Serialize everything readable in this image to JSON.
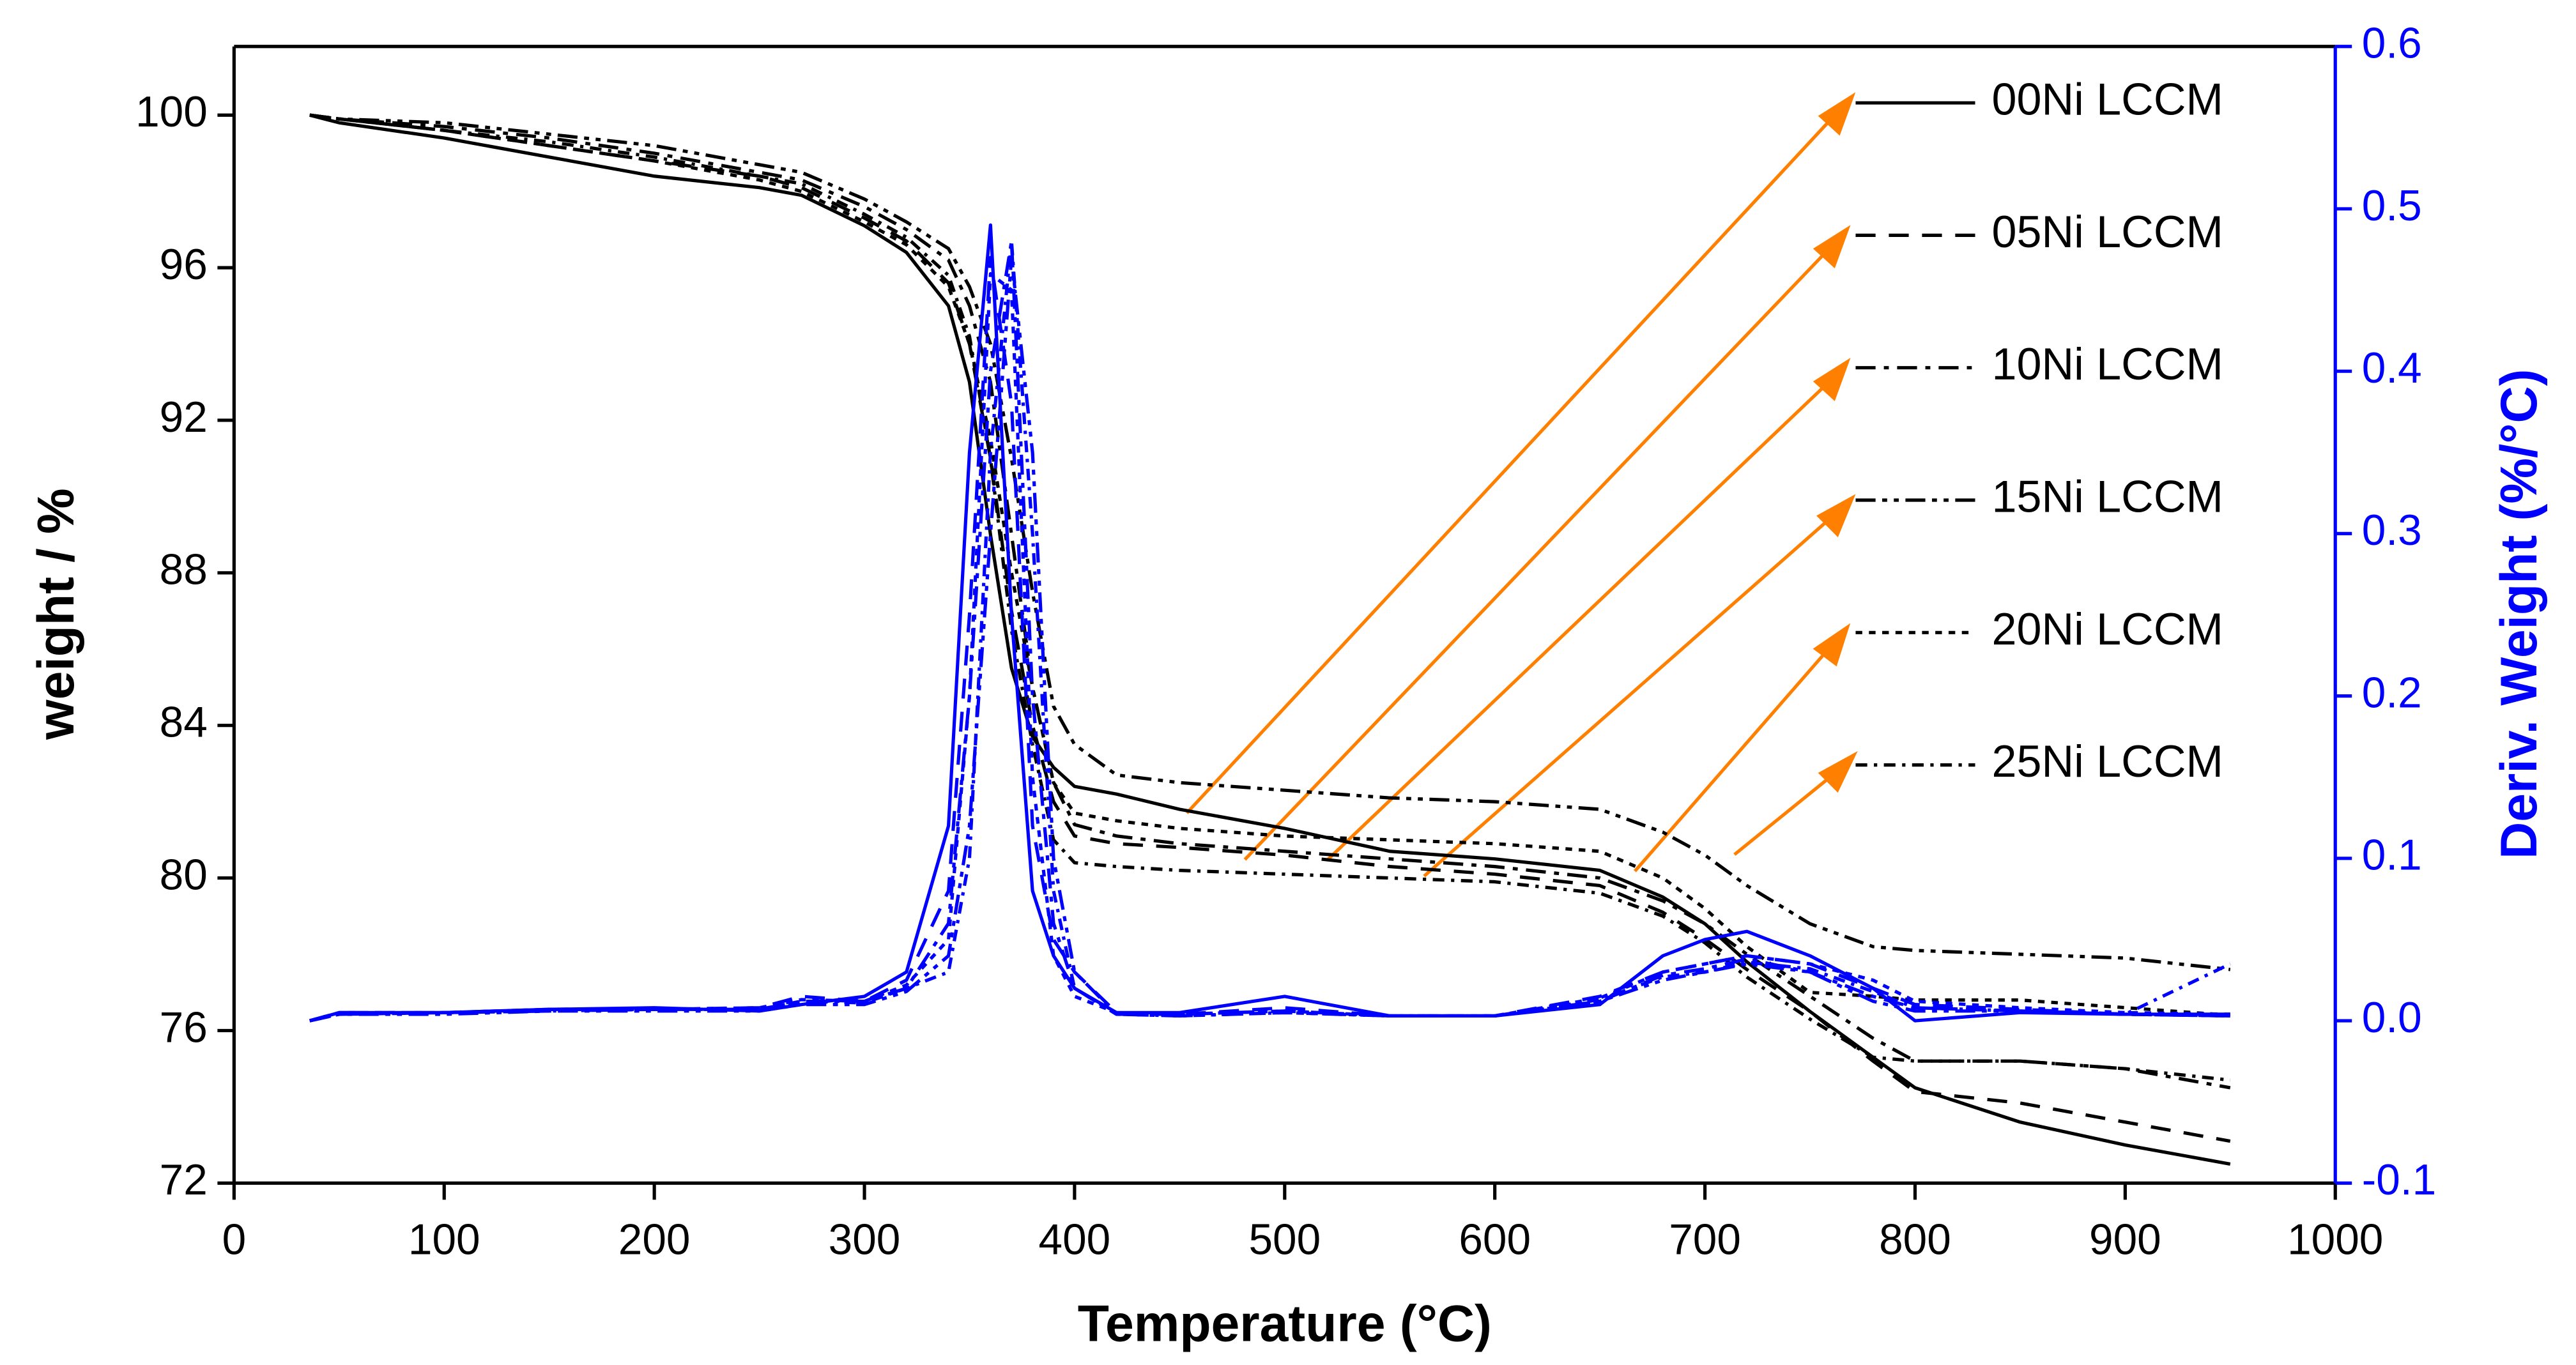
{
  "chart_data": {
    "type": "line",
    "xlabel": "Temperature (°C)",
    "ylabel": "weight / %",
    "y2label": "Deriv. Weight (%/°C)",
    "xlim": [
      0,
      1000
    ],
    "xticks": [
      0,
      100,
      200,
      300,
      400,
      500,
      600,
      700,
      800,
      900,
      1000
    ],
    "ylim": [
      72,
      101.8
    ],
    "yticks": [
      72,
      76,
      80,
      84,
      88,
      92,
      96,
      100
    ],
    "y2lim": [
      -0.1,
      0.6
    ],
    "y2ticks": [
      -0.1,
      {
        "value": 0,
        "label": "0.0"
      },
      0.1,
      0.2,
      0.3,
      0.4,
      0.5,
      0.6
    ],
    "y2color": "#0000ff",
    "legend": "right",
    "x": [
      36,
      50,
      100,
      150,
      200,
      250,
      270,
      300,
      320,
      340,
      350,
      360,
      370,
      380,
      390,
      400,
      420,
      450,
      500,
      550,
      600,
      650,
      680,
      700,
      720,
      750,
      780,
      800,
      850,
      900,
      950
    ],
    "series": [
      {
        "name": "00Ni LCCM",
        "color": "#000000",
        "dash": "solid",
        "values": [
          100,
          99.8,
          99.4,
          98.9,
          98.4,
          98.1,
          97.9,
          97.1,
          96.4,
          95,
          93,
          89,
          85.5,
          83.7,
          82.9,
          82.4,
          82.2,
          81.8,
          81.3,
          80.7,
          80.5,
          80.2,
          79.5,
          78.8,
          77.8,
          76.5,
          75.3,
          74.5,
          73.6,
          73.0,
          72.5
        ]
      },
      {
        "name": "05Ni LCCM",
        "color": "#000000",
        "dash": "dash",
        "values": [
          100,
          99.9,
          99.6,
          99.2,
          98.8,
          98.4,
          98.1,
          97.3,
          96.7,
          95.6,
          94,
          91,
          87,
          84,
          82,
          81.1,
          80.9,
          80.8,
          80.6,
          80.3,
          80.1,
          79.8,
          79.1,
          78.4,
          77.6,
          76.5,
          75.2,
          74.4,
          74.1,
          73.6,
          73.1
        ]
      },
      {
        "name": "10Ni LCCM",
        "color": "#000000",
        "dash": "dashdot",
        "values": [
          100,
          99.9,
          99.7,
          99.4,
          99.0,
          98.5,
          98.3,
          97.6,
          97.0,
          96.2,
          95,
          93,
          89,
          85,
          82.5,
          81.4,
          81.1,
          80.9,
          80.7,
          80.5,
          80.3,
          80.0,
          79.4,
          78.8,
          78.0,
          76.9,
          75.8,
          75.2,
          75.2,
          75.0,
          74.5
        ]
      },
      {
        "name": "15Ni LCCM",
        "color": "#000000",
        "dash": "dashdotdot",
        "values": [
          100,
          99.9,
          99.8,
          99.5,
          99.2,
          98.7,
          98.5,
          97.8,
          97.2,
          96.5,
          95.5,
          94,
          91,
          87.5,
          84.5,
          83.5,
          82.7,
          82.5,
          82.3,
          82.1,
          82.0,
          81.8,
          81.2,
          80.6,
          79.8,
          78.8,
          78.2,
          78.1,
          78.0,
          77.9,
          77.6
        ]
      },
      {
        "name": "20Ni LCCM",
        "color": "#000000",
        "dash": "dot",
        "values": [
          100,
          99.9,
          99.6,
          99.2,
          98.8,
          98.3,
          98.0,
          97.2,
          96.6,
          95.5,
          94,
          91.5,
          88,
          85,
          82.5,
          81.7,
          81.5,
          81.3,
          81.1,
          81.0,
          80.9,
          80.7,
          80.0,
          79.2,
          78.2,
          77.0,
          76.9,
          76.8,
          76.8,
          76.6,
          76.4
        ]
      },
      {
        "name": "25Ni LCCM",
        "color": "#000000",
        "dash": "shortdashdot",
        "values": [
          100,
          99.9,
          99.6,
          99.3,
          98.9,
          98.4,
          98.2,
          97.4,
          96.8,
          95.8,
          94.2,
          91,
          86.5,
          83.5,
          81.0,
          80.4,
          80.3,
          80.2,
          80.1,
          80.0,
          79.9,
          79.6,
          79.0,
          78.3,
          77.4,
          76.3,
          75.3,
          75.2,
          75.2,
          75.0,
          74.7
        ]
      },
      {
        "color": "#0000ff",
        "dash": "solid",
        "axis": "y2",
        "values": [
          0.0,
          0.005,
          0.005,
          0.007,
          0.008,
          0.006,
          0.01,
          0.015,
          0.03,
          0.12,
          0.35,
          0.49,
          0.25,
          0.08,
          0.04,
          0.02,
          0.005,
          0.005,
          0.015,
          0.003,
          0.003,
          0.01,
          0.04,
          0.05,
          0.055,
          0.04,
          0.02,
          0.0,
          0.005,
          0.004,
          0.004
        ]
      },
      {
        "color": "#0000ff",
        "dash": "dash",
        "axis": "y2",
        "values": [
          0.0,
          0.005,
          0.005,
          0.007,
          0.007,
          0.008,
          0.015,
          0.012,
          0.025,
          0.08,
          0.25,
          0.47,
          0.38,
          0.12,
          0.05,
          0.03,
          0.005,
          0.004,
          0.008,
          0.003,
          0.003,
          0.015,
          0.03,
          0.035,
          0.04,
          0.035,
          0.02,
          0.01,
          0.007,
          0.004,
          0.003
        ]
      },
      {
        "color": "#0000ff",
        "dash": "dashdot",
        "axis": "y2",
        "values": [
          0.0,
          0.004,
          0.005,
          0.006,
          0.007,
          0.007,
          0.012,
          0.012,
          0.02,
          0.06,
          0.2,
          0.4,
          0.48,
          0.2,
          0.06,
          0.02,
          0.004,
          0.004,
          0.006,
          0.003,
          0.003,
          0.012,
          0.028,
          0.032,
          0.038,
          0.03,
          0.015,
          0.008,
          0.006,
          0.004,
          0.003
        ]
      },
      {
        "color": "#0000ff",
        "dash": "dashdotdot",
        "axis": "y2",
        "values": [
          0.0,
          0.004,
          0.004,
          0.006,
          0.006,
          0.006,
          0.01,
          0.01,
          0.018,
          0.04,
          0.12,
          0.3,
          0.47,
          0.35,
          0.1,
          0.03,
          0.004,
          0.003,
          0.005,
          0.003,
          0.003,
          0.012,
          0.025,
          0.03,
          0.035,
          0.03,
          0.012,
          0.006,
          0.006,
          0.004,
          0.003
        ]
      },
      {
        "color": "#0000ff",
        "dash": "dot",
        "axis": "y2",
        "values": [
          0.0,
          0.005,
          0.005,
          0.007,
          0.007,
          0.008,
          0.013,
          0.012,
          0.022,
          0.05,
          0.2,
          0.46,
          0.45,
          0.15,
          0.04,
          0.015,
          0.005,
          0.004,
          0.006,
          0.003,
          0.003,
          0.014,
          0.03,
          0.035,
          0.04,
          0.035,
          0.025,
          0.012,
          0.008,
          0.005,
          0.004
        ]
      },
      {
        "color": "#0000ff",
        "dash": "shortdashdot",
        "axis": "y2",
        "values": [
          0.0,
          0.004,
          0.005,
          0.006,
          0.007,
          0.007,
          0.012,
          0.011,
          0.02,
          0.03,
          0.1,
          0.35,
          0.48,
          0.3,
          0.08,
          0.02,
          0.004,
          0.003,
          0.005,
          0.003,
          0.003,
          0.013,
          0.027,
          0.03,
          0.036,
          0.032,
          0.018,
          0.008,
          0.006,
          0.004,
          0.035
        ]
      }
    ]
  }
}
